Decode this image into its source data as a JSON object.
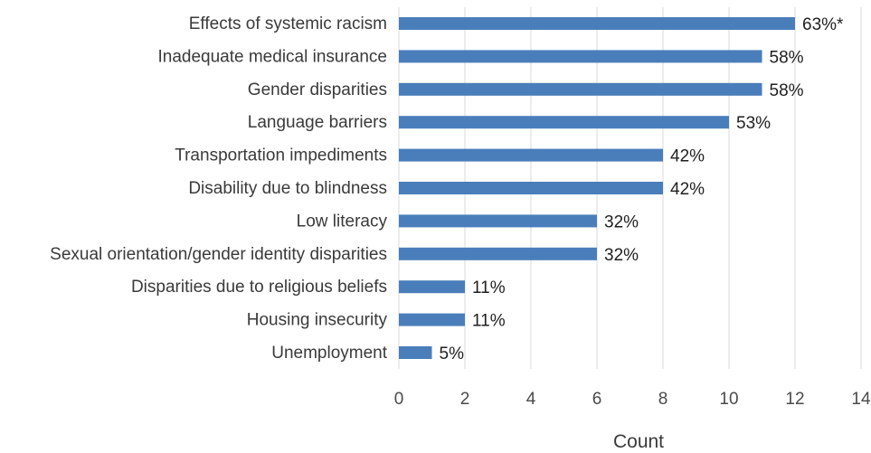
{
  "chart_data": {
    "type": "bar",
    "orientation": "horizontal",
    "categories": [
      "Effects of systemic racism",
      "Inadequate medical insurance",
      "Gender disparities",
      "Language barriers",
      "Transportation impediments",
      "Disability due to blindness",
      "Low literacy",
      "Sexual orientation/gender identity disparities",
      "Disparities due to religious beliefs",
      "Housing insecurity",
      "Unemployment"
    ],
    "values": [
      12,
      11,
      11,
      10,
      8,
      8,
      6,
      6,
      2,
      2,
      1
    ],
    "data_labels": [
      "63%*",
      "58%",
      "58%",
      "53%",
      "42%",
      "42%",
      "32%",
      "32%",
      "11%",
      "11%",
      "5%"
    ],
    "title": "",
    "xlabel": "Count",
    "ylabel": "",
    "xlim": [
      0,
      14
    ],
    "xticks": [
      0,
      2,
      4,
      6,
      8,
      10,
      12,
      14
    ],
    "grid": "vertical",
    "legend": "none",
    "bar_color": "#4a7ebb",
    "grid_color": "#d9d9d9"
  }
}
